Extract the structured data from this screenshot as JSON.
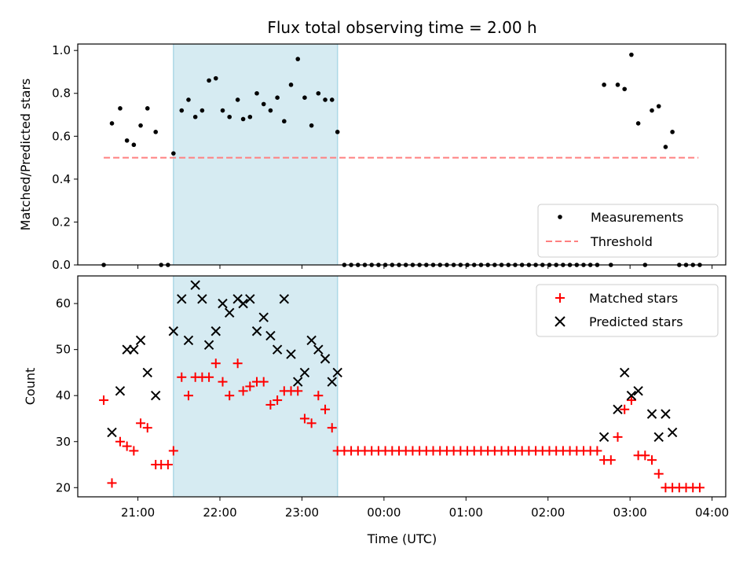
{
  "title": "Flux total observing time = 2.00 h",
  "xlabel": "Time (UTC)",
  "x_ticks": [
    "21:00",
    "22:00",
    "23:00",
    "00:00",
    "01:00",
    "02:00",
    "03:00",
    "04:00"
  ],
  "colors": {
    "measurement": "#000000",
    "threshold": "#ff8080",
    "matched": "#ff0000",
    "predicted": "#000000",
    "shade": "#add8e6"
  },
  "chart_data": [
    {
      "type": "scatter",
      "ylabel": "Matched/Predicted stars",
      "xlim": [
        "20:16",
        "04:10"
      ],
      "ylim": [
        0,
        1.03
      ],
      "y_ticks": [
        "0.0",
        "0.2",
        "0.4",
        "0.6",
        "0.8",
        "1.0"
      ],
      "shaded_interval": [
        "21:26",
        "23:26"
      ],
      "threshold": {
        "name": "Threshold",
        "value": 0.5,
        "x_range": [
          "20:35",
          "03:50"
        ]
      },
      "legend": {
        "position": "lower right",
        "entries": [
          "Measurements",
          "Threshold"
        ]
      },
      "series": [
        {
          "name": "Measurements",
          "x": [
            "20:35",
            "20:41",
            "20:47",
            "20:52",
            "20:57",
            "21:02",
            "21:07",
            "21:13",
            "21:17",
            "21:22",
            "21:26",
            "21:32",
            "21:37",
            "21:42",
            "21:47",
            "21:52",
            "21:57",
            "22:02",
            "22:07",
            "22:13",
            "22:17",
            "22:22",
            "22:27",
            "22:32",
            "22:37",
            "22:42",
            "22:47",
            "22:52",
            "22:57",
            "23:02",
            "23:07",
            "23:12",
            "23:17",
            "23:22",
            "23:26",
            "23:31",
            "23:36",
            "23:41",
            "23:46",
            "23:51",
            "23:56",
            "00:01",
            "00:06",
            "00:11",
            "00:16",
            "00:21",
            "00:26",
            "00:31",
            "00:36",
            "00:41",
            "00:46",
            "00:51",
            "00:56",
            "01:01",
            "01:06",
            "01:11",
            "01:16",
            "01:21",
            "01:26",
            "01:31",
            "01:36",
            "01:41",
            "01:46",
            "01:51",
            "01:56",
            "02:01",
            "02:06",
            "02:11",
            "02:16",
            "02:21",
            "02:26",
            "02:31",
            "02:36",
            "02:41",
            "02:46",
            "02:51",
            "02:56",
            "03:01",
            "03:06",
            "03:11",
            "03:16",
            "03:21",
            "03:26",
            "03:31",
            "03:36",
            "03:41",
            "03:46",
            "03:51"
          ],
          "y": [
            0,
            0.66,
            0.73,
            0.58,
            0.56,
            0.65,
            0.73,
            0.62,
            0,
            0,
            0.52,
            0.72,
            0.77,
            0.69,
            0.72,
            0.86,
            0.87,
            0.72,
            0.69,
            0.77,
            0.68,
            0.69,
            0.8,
            0.75,
            0.72,
            0.78,
            0.67,
            0.84,
            0.96,
            0.78,
            0.65,
            0.8,
            0.77,
            0.77,
            0.62,
            0,
            0,
            0,
            0,
            0,
            0,
            0,
            0,
            0,
            0,
            0,
            0,
            0,
            0,
            0,
            0,
            0,
            0,
            0,
            0,
            0,
            0,
            0,
            0,
            0,
            0,
            0,
            0,
            0,
            0,
            0,
            0,
            0,
            0,
            0,
            0,
            0,
            0,
            0.84,
            0,
            0.84,
            0.82,
            0.98,
            0.66,
            0,
            0.72,
            0.74,
            0.55,
            0.62,
            0,
            0,
            0,
            0
          ]
        }
      ]
    },
    {
      "type": "scatter",
      "ylabel": "Count",
      "xlabel": "Time (UTC)",
      "xlim": [
        "20:16",
        "04:10"
      ],
      "ylim": [
        18,
        66
      ],
      "y_ticks": [
        "20",
        "30",
        "40",
        "50",
        "60"
      ],
      "shaded_interval": [
        "21:26",
        "23:26"
      ],
      "legend": {
        "position": "upper right",
        "entries": [
          "Matched stars",
          "Predicted stars"
        ]
      },
      "series": [
        {
          "name": "Matched stars",
          "marker": "+",
          "x": [
            "20:35",
            "20:41",
            "20:47",
            "20:52",
            "20:57",
            "21:02",
            "21:07",
            "21:13",
            "21:17",
            "21:22",
            "21:26",
            "21:32",
            "21:37",
            "21:42",
            "21:47",
            "21:52",
            "21:57",
            "22:02",
            "22:07",
            "22:13",
            "22:17",
            "22:22",
            "22:27",
            "22:32",
            "22:37",
            "22:42",
            "22:47",
            "22:52",
            "22:57",
            "23:02",
            "23:07",
            "23:12",
            "23:17",
            "23:22",
            "23:26",
            "23:31",
            "23:36",
            "23:41",
            "23:46",
            "23:51",
            "23:56",
            "00:01",
            "00:06",
            "00:11",
            "00:16",
            "00:21",
            "00:26",
            "00:31",
            "00:36",
            "00:41",
            "00:46",
            "00:51",
            "00:56",
            "01:01",
            "01:06",
            "01:11",
            "01:16",
            "01:21",
            "01:26",
            "01:31",
            "01:36",
            "01:41",
            "01:46",
            "01:51",
            "01:56",
            "02:01",
            "02:06",
            "02:11",
            "02:16",
            "02:21",
            "02:26",
            "02:31",
            "02:36",
            "02:41",
            "02:46",
            "02:51",
            "02:56",
            "03:01",
            "03:06",
            "03:11",
            "03:16",
            "03:21",
            "03:26",
            "03:31",
            "03:36",
            "03:41",
            "03:46",
            "03:51"
          ],
          "y": [
            39,
            21,
            30,
            29,
            28,
            34,
            33,
            25,
            25,
            25,
            28,
            44,
            40,
            44,
            44,
            44,
            47,
            43,
            40,
            47,
            41,
            42,
            43,
            43,
            38,
            39,
            41,
            41,
            41,
            35,
            34,
            40,
            37,
            33,
            28,
            28,
            28,
            28,
            28,
            28,
            28,
            28,
            28,
            28,
            28,
            28,
            28,
            28,
            28,
            28,
            28,
            28,
            28,
            28,
            28,
            28,
            28,
            28,
            28,
            28,
            28,
            28,
            28,
            28,
            28,
            28,
            28,
            28,
            28,
            28,
            28,
            28,
            28,
            26,
            26,
            31,
            37,
            39,
            27,
            27,
            26,
            23,
            20,
            20,
            20,
            20,
            20,
            20
          ]
        },
        {
          "name": "Predicted stars",
          "marker": "x",
          "x": [
            "20:41",
            "20:47",
            "20:52",
            "20:57",
            "21:02",
            "21:07",
            "21:13",
            "21:26",
            "21:32",
            "21:37",
            "21:42",
            "21:47",
            "21:52",
            "21:57",
            "22:02",
            "22:07",
            "22:13",
            "22:17",
            "22:22",
            "22:27",
            "22:32",
            "22:37",
            "22:42",
            "22:47",
            "22:52",
            "22:57",
            "23:02",
            "23:07",
            "23:12",
            "23:17",
            "23:22",
            "23:26",
            "02:41",
            "02:51",
            "02:56",
            "03:01",
            "03:06",
            "03:16",
            "03:21",
            "03:26",
            "03:31"
          ],
          "y": [
            32,
            41,
            50,
            50,
            52,
            45,
            40,
            54,
            61,
            52,
            64,
            61,
            51,
            54,
            60,
            58,
            61,
            60,
            61,
            54,
            57,
            53,
            50,
            61,
            49,
            43,
            45,
            52,
            50,
            48,
            43,
            45,
            31,
            37,
            45,
            40,
            41,
            36,
            31,
            36,
            32
          ]
        }
      ]
    }
  ]
}
